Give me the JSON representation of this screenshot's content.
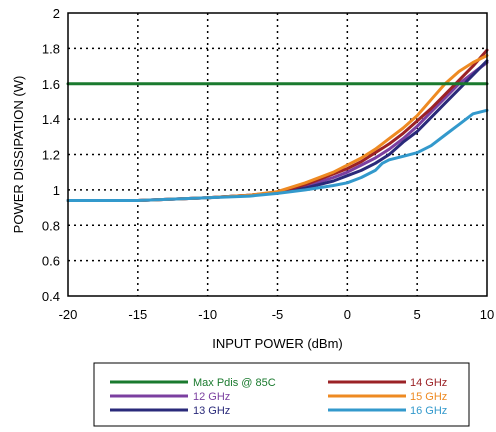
{
  "chart_data": {
    "type": "line",
    "xlabel": "INPUT POWER (dBm)",
    "ylabel": "POWER DISSIPATION (W)",
    "xlim": [
      -20,
      10
    ],
    "ylim": [
      0.4,
      2
    ],
    "xticks": [
      -20,
      -15,
      -10,
      -5,
      0,
      5,
      10
    ],
    "yticks": [
      0.4,
      0.6,
      0.8,
      1,
      1.2,
      1.4,
      1.6,
      1.8,
      2
    ],
    "xtick_labels": [
      "-20",
      "-15",
      "-10",
      "-5",
      "0",
      "5",
      "10"
    ],
    "ytick_labels": [
      "0.4",
      "0.6",
      "0.8",
      "1",
      "1.2",
      "1.4",
      "1.6",
      "1.8",
      "2"
    ],
    "grid": "dotted",
    "legend_position": "bottom",
    "series": [
      {
        "name": "Max Pdis @ 85C",
        "color": "#1a7a2e",
        "x": [
          -20,
          10
        ],
        "y": [
          1.6,
          1.6
        ]
      },
      {
        "name": "12 GHz",
        "color": "#7b3fa0",
        "x": [
          -20,
          -15,
          -10,
          -7,
          -5,
          -3,
          -1,
          0,
          1,
          2,
          3,
          4,
          5,
          6,
          7,
          8,
          9,
          10
        ],
        "y": [
          0.94,
          0.94,
          0.955,
          0.97,
          0.985,
          1.02,
          1.07,
          1.1,
          1.14,
          1.18,
          1.23,
          1.29,
          1.36,
          1.44,
          1.52,
          1.6,
          1.66,
          1.72
        ]
      },
      {
        "name": "13 GHz",
        "color": "#2a2a7a",
        "x": [
          -20,
          -15,
          -10,
          -7,
          -5,
          -3,
          -1,
          0,
          1,
          2,
          3,
          4,
          5,
          6,
          7,
          8,
          9,
          10
        ],
        "y": [
          0.94,
          0.94,
          0.955,
          0.97,
          0.985,
          1.01,
          1.05,
          1.08,
          1.11,
          1.15,
          1.2,
          1.27,
          1.33,
          1.41,
          1.49,
          1.57,
          1.65,
          1.73
        ]
      },
      {
        "name": "14 GHz",
        "color": "#9b2226",
        "x": [
          -20,
          -15,
          -10,
          -7,
          -5,
          -3,
          -1,
          0,
          1,
          2,
          3,
          4,
          5,
          6,
          7,
          8,
          9,
          10
        ],
        "y": [
          0.94,
          0.94,
          0.955,
          0.97,
          0.985,
          1.03,
          1.09,
          1.12,
          1.16,
          1.21,
          1.26,
          1.32,
          1.39,
          1.46,
          1.54,
          1.62,
          1.7,
          1.79
        ]
      },
      {
        "name": "15 GHz",
        "color": "#ee8a22",
        "x": [
          -20,
          -15,
          -10,
          -7,
          -5,
          -3,
          -1,
          0,
          1,
          2,
          3,
          4,
          5,
          6,
          7,
          8,
          9,
          10
        ],
        "y": [
          0.94,
          0.94,
          0.955,
          0.97,
          0.99,
          1.04,
          1.1,
          1.14,
          1.18,
          1.23,
          1.29,
          1.35,
          1.42,
          1.51,
          1.6,
          1.67,
          1.72,
          1.76
        ]
      },
      {
        "name": "16 GHz",
        "color": "#3399cc",
        "x": [
          -20,
          -15,
          -10,
          -7,
          -5,
          -3,
          -1,
          0,
          1,
          2,
          2.5,
          3,
          4,
          5,
          6,
          7,
          8,
          9,
          10
        ],
        "y": [
          0.94,
          0.94,
          0.955,
          0.965,
          0.98,
          1.0,
          1.025,
          1.04,
          1.07,
          1.11,
          1.15,
          1.17,
          1.19,
          1.21,
          1.25,
          1.31,
          1.37,
          1.43,
          1.45
        ]
      }
    ],
    "legend_order": [
      "Max Pdis @ 85C",
      "12 GHz",
      "13 GHz",
      "14 GHz",
      "15 GHz",
      "16 GHz"
    ]
  }
}
